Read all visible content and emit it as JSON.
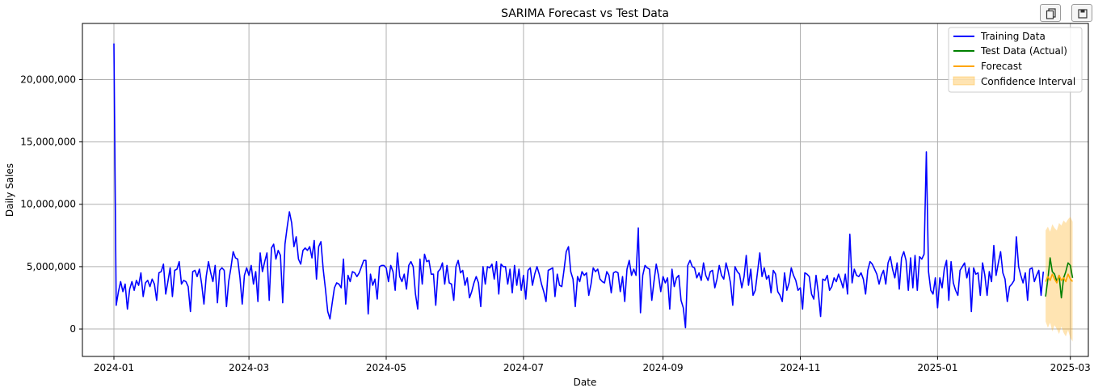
{
  "toolbar": {
    "buttons": [
      {
        "icon": "copy-icon"
      },
      {
        "icon": "save-icon"
      }
    ]
  },
  "chart_data": {
    "type": "line",
    "title": "SARIMA Forecast vs Test Data",
    "xlabel": "Date",
    "ylabel": "Daily Sales",
    "grid": true,
    "legend_position": "top-right",
    "xlim": [
      "2023-12-18",
      "2025-03-09"
    ],
    "ylim": [
      -2200000,
      24500000
    ],
    "x_ticks": [
      "2024-01",
      "2024-03",
      "2024-05",
      "2024-07",
      "2024-09",
      "2024-11",
      "2025-01",
      "2025-03"
    ],
    "x_tick_dates": [
      "2024-01-01",
      "2024-03-01",
      "2024-05-01",
      "2024-07-01",
      "2024-09-01",
      "2024-11-01",
      "2025-01-01",
      "2025-03-01"
    ],
    "y_ticks": [
      0,
      5000000,
      10000000,
      15000000,
      20000000
    ],
    "y_tick_labels": [
      "0",
      "5,000,000",
      "10,000,000",
      "15,000,000",
      "20,000,000"
    ],
    "colors": {
      "training": "#0000ff",
      "test": "#008000",
      "forecast": "#ffa500",
      "ci": "#ffa500"
    },
    "series": [
      {
        "name": "Training Data",
        "start": "2024-01-01",
        "values": [
          22900000,
          1900000,
          3000000,
          3800000,
          3000000,
          3600000,
          1600000,
          3200000,
          3800000,
          3100000,
          3900000,
          3500000,
          4500000,
          2600000,
          3700000,
          3900000,
          3400000,
          4000000,
          3600000,
          2300000,
          4500000,
          4600000,
          5200000,
          2800000,
          3800000,
          4900000,
          2600000,
          4700000,
          4800000,
          5400000,
          3600000,
          3900000,
          3800000,
          3400000,
          1400000,
          4600000,
          4700000,
          4200000,
          4800000,
          3600000,
          2000000,
          4200000,
          5400000,
          4500000,
          3800000,
          5100000,
          2100000,
          4700000,
          4900000,
          4700000,
          1800000,
          3800000,
          4900000,
          6200000,
          5700000,
          5600000,
          4100000,
          2000000,
          4300000,
          4900000,
          4300000,
          5100000,
          3600000,
          4600000,
          2200000,
          6100000,
          4600000,
          5400000,
          6100000,
          2300000,
          6500000,
          6800000,
          5600000,
          6300000,
          5900000,
          2100000,
          6800000,
          8200000,
          9400000,
          8500000,
          6600000,
          7400000,
          5600000,
          5200000,
          6300000,
          6500000,
          6300000,
          6600000,
          5700000,
          7100000,
          4000000,
          6600000,
          7000000,
          4800000,
          3200000,
          1400000,
          800000,
          2100000,
          3300000,
          3700000,
          3600000,
          3300000,
          5600000,
          2000000,
          4300000,
          3800000,
          4600000,
          4500000,
          4200000,
          4500000,
          5000000,
          5500000,
          5500000,
          1200000,
          4400000,
          3500000,
          4000000,
          2400000,
          5000000,
          5100000,
          5100000,
          4900000,
          3800000,
          5100000,
          4600000,
          3100000,
          6100000,
          4200000,
          3800000,
          4400000,
          3200000,
          5100000,
          5400000,
          5000000,
          2800000,
          1600000,
          5600000,
          3600000,
          6000000,
          5400000,
          5500000,
          4400000,
          4400000,
          1900000,
          4600000,
          4800000,
          5300000,
          3600000,
          5100000,
          3700000,
          3600000,
          2300000,
          5000000,
          5500000,
          4500000,
          4700000,
          3500000,
          4100000,
          2500000,
          3000000,
          3700000,
          4200000,
          3700000,
          1800000,
          5000000,
          3600000,
          5000000,
          4900000,
          5200000,
          4000000,
          5400000,
          2800000,
          5200000,
          5000000,
          5000000,
          3600000,
          4800000,
          2900000,
          5100000,
          3500000,
          4800000,
          3100000,
          4300000,
          2400000,
          4700000,
          4900000,
          3500000,
          4400000,
          5000000,
          4400000,
          3600000,
          3000000,
          2200000,
          4700000,
          4800000,
          4900000,
          2600000,
          4400000,
          3500000,
          3400000,
          4700000,
          6200000,
          6600000,
          4600000,
          4000000,
          1800000,
          4200000,
          3800000,
          4600000,
          4300000,
          4500000,
          2700000,
          3600000,
          4900000,
          4600000,
          4800000,
          4000000,
          3800000,
          3700000,
          4600000,
          4300000,
          2900000,
          4500000,
          4600000,
          4500000,
          3000000,
          4200000,
          2200000,
          4800000,
          5500000,
          4300000,
          4800000,
          4300000,
          8100000,
          1300000,
          4300000,
          5100000,
          4900000,
          4800000,
          2300000,
          3800000,
          5200000,
          4300000,
          3000000,
          4200000,
          3700000,
          4100000,
          1600000,
          4800000,
          3400000,
          4100000,
          4300000,
          2300000,
          1700000,
          100000,
          5100000,
          5500000,
          5000000,
          4900000,
          4100000,
          4500000,
          3900000,
          5300000,
          4300000,
          3900000,
          4600000,
          4700000,
          3300000,
          4000000,
          5100000,
          4300000,
          4000000,
          5300000,
          4600000,
          3700000,
          1900000,
          5000000,
          4600000,
          4400000,
          3300000,
          4200000,
          5900000,
          3500000,
          4800000,
          2700000,
          3100000,
          4600000,
          6100000,
          4200000,
          4900000,
          4000000,
          4300000,
          2900000,
          4700000,
          4400000,
          3000000,
          2700000,
          2200000,
          4500000,
          3100000,
          3700000,
          4900000,
          4300000,
          3900000,
          3100000,
          3300000,
          1600000,
          4500000,
          4400000,
          4200000,
          2800000,
          2400000,
          4300000,
          2900000,
          1000000,
          4000000,
          3900000,
          4300000,
          3100000,
          3400000,
          4100000,
          3800000,
          4400000,
          3900000,
          3300000,
          4400000,
          2800000,
          7600000,
          3700000,
          4800000,
          4300000,
          4200000,
          4500000,
          4000000,
          2800000,
          4700000,
          5400000,
          5200000,
          4800000,
          4400000,
          3600000,
          4300000,
          4700000,
          3600000,
          5300000,
          5800000,
          4800000,
          4100000,
          5300000,
          3200000,
          5700000,
          6200000,
          5500000,
          3100000,
          5700000,
          3300000,
          5900000,
          3100000,
          5800000,
          5600000,
          6000000,
          14200000,
          4600000,
          3100000,
          2800000,
          4100000,
          1700000,
          4100000,
          3300000,
          4800000,
          5500000,
          2300000,
          5400000,
          3700000,
          3100000,
          2700000,
          4700000,
          5000000,
          5300000,
          4100000,
          4900000,
          1400000,
          4900000,
          4400000,
          4500000,
          2700000,
          5300000,
          4300000,
          2700000,
          4600000,
          3800000,
          6700000,
          4300000,
          5300000,
          6200000,
          4500000,
          4000000,
          2200000,
          3400000,
          3600000,
          3900000,
          7400000,
          5000000,
          4300000,
          3700000,
          4500000,
          2300000,
          4800000,
          4900000,
          3800000,
          4300000,
          4700000,
          2700000,
          4600000
        ],
        "color": "#0000ff"
      },
      {
        "name": "Test Data (Actual)",
        "start": "2025-02-18",
        "values": [
          2600000,
          4000000,
          5700000,
          4600000,
          4400000,
          3800000,
          4300000,
          2500000,
          4100000,
          4600000,
          5300000,
          5100000,
          4100000
        ],
        "color": "#008000"
      },
      {
        "name": "Forecast",
        "start": "2025-02-18",
        "values": [
          3800000,
          4200000,
          3900000,
          4400000,
          4000000,
          3700000,
          4300000,
          3900000,
          4100000,
          3800000,
          4400000,
          4000000,
          3800000
        ],
        "color": "#ffa500"
      },
      {
        "name": "Confidence Interval",
        "start": "2025-02-18",
        "type": "area",
        "lower": [
          600000,
          100000,
          500000,
          -200000,
          300000,
          0,
          -400000,
          200000,
          -300000,
          -600000,
          -100000,
          -700000,
          -1000000
        ],
        "upper": [
          7900000,
          8200000,
          7800000,
          8400000,
          8100000,
          7900000,
          8500000,
          8300000,
          8700000,
          8500000,
          8800000,
          9000000,
          8600000
        ],
        "color": "#ffa500"
      }
    ]
  }
}
